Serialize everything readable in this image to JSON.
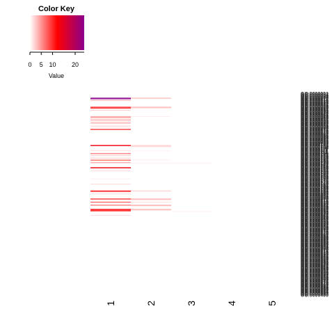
{
  "chart_data": {
    "type": "heatmap",
    "title": "",
    "color_key": {
      "title": "Color Key",
      "xlabel": "Value",
      "ticks": [
        0,
        5,
        10,
        20
      ],
      "range": [
        0,
        24
      ],
      "stops": [
        {
          "value": 0,
          "color": "#ffffff"
        },
        {
          "value": 12,
          "color": "#ff0000"
        },
        {
          "value": 24,
          "color": "#8b008b"
        }
      ]
    },
    "columns": [
      "1",
      "2",
      "3",
      "4",
      "5"
    ],
    "rows": [
      "GO:0000001",
      "GO:0000002",
      "GO:0000003",
      "GO:0000004",
      "GO:0000005",
      "GO:0000006",
      "GO:0000007",
      "GO:0000008",
      "GO:0000009",
      "GO:0000010",
      "GO:0000011",
      "GO:0000012",
      "GO:0000013",
      "GO:0000014",
      "GO:0000015",
      "GO:0000016",
      "GO:0000017",
      "GO:0000018",
      "GO:0000019",
      "GO:0000020",
      "GO:0000021",
      "GO:0000022",
      "GO:0000023",
      "GO:0000024",
      "GO:0000025",
      "GO:0000026",
      "GO:0000027",
      "GO:0000028",
      "GO:0000029",
      "GO:0000030",
      "GO:0000031",
      "GO:0000032",
      "GO:0000033",
      "GO:0000034",
      "GO:0000035",
      "GO:0000036",
      "GO:0000037",
      "GO:0000038",
      "GO:0000039",
      "GO:0000040",
      "GO:0000041",
      "GO:0000042",
      "GO:0000043",
      "GO:0000044",
      "GO:0000045",
      "GO:0000046",
      "GO:0000047",
      "GO:0000048",
      "GO:0000049",
      "GO:0000050",
      "GO:0000051",
      "GO:0000052",
      "GO:0000053",
      "GO:0000054",
      "GO:0000055",
      "GO:0000056",
      "GO:0000057",
      "GO:0000058",
      "GO:0000059",
      "GO:0000060",
      "GO:0000061",
      "GO:0000062",
      "GO:0000063",
      "GO:0000064",
      "GO:0000065",
      "GO:0000066",
      "GO:0000067",
      "GO:0000068",
      "GO:0000069",
      "GO:0000070",
      "GO:0000071",
      "GO:0000072",
      "GO:0000073",
      "GO:0000074",
      "GO:0000075",
      "GO:0000076",
      "GO:0000077",
      "GO:0000078",
      "GO:0000079",
      "GO:0000080",
      "GO:0000081",
      "GO:0000082",
      "GO:0000083",
      "GO:0000084",
      "GO:0000085",
      "GO:0000086",
      "GO:0000087",
      "GO:0000088",
      "GO:0000089",
      "GO:0000090",
      "GO:0000091",
      "GO:0000092",
      "GO:0000093",
      "GO:0000094",
      "GO:0000095",
      "GO:0000096",
      "GO:0000097",
      "GO:0000098",
      "GO:0000099",
      "GO:0000100",
      "GO:0000101",
      "GO:0000102",
      "GO:0000103",
      "GO:0000104",
      "GO:0000105",
      "GO:0000106",
      "GO:0000107",
      "GO:0000108",
      "GO:0000109",
      "GO:0000110",
      "GO:0000111",
      "GO:0000112",
      "GO:0000113",
      "GO:0000114",
      "GO:0000115",
      "GO:0000116",
      "GO:0000117",
      "GO:0000118",
      "GO:0000119",
      "GO:0000120",
      "GO:0000121",
      "GO:0000122",
      "GO:0000123",
      "GO:0000124",
      "GO:0000125",
      "GO:0000126",
      "GO:0000127",
      "GO:0000128",
      "GO:0000129",
      "GO:0000130",
      "GO:0000131",
      "GO:0000132",
      "GO:0000133",
      "GO:0000134",
      "GO:0000135",
      "GO:0000136",
      "GO:0000137",
      "GO:0000138",
      "GO:0000139",
      "GO:0000140",
      "GO:0000141",
      "GO:0000142",
      "GO:0000143",
      "GO:0000144",
      "GO:0000145",
      "GO:0000146",
      "GO:0000147",
      "GO:0000148",
      "GO:0000149",
      "GO:0000150",
      "GO:0000151",
      "GO:0000152",
      "GO:0000153",
      "GO:0000154",
      "GO:0000155",
      "GO:0000156",
      "GO:0000157",
      "GO:0000158",
      "GO:0000159",
      "GO:0000160",
      "GO:0000161",
      "GO:0000162",
      "GO:0000163",
      "GO:0000164",
      "GO:0000165",
      "GO:0000166",
      "GO:0000167",
      "GO:0000168",
      "GO:0000169",
      "GO:0000170",
      "GO:0000171",
      "GO:0000172",
      "GO:0000173",
      "GO:0000174",
      "GO:0000175",
      "GO:0000176",
      "GO:0000177",
      "GO:0000178",
      "GO:0000179",
      "GO:0000180",
      "GO:0000181",
      "GO:0000182",
      "GO:0000183",
      "GO:0000184",
      "GO:0000185",
      "GO:0000186",
      "GO:0000187",
      "GO:0000188",
      "GO:0000189",
      "GO:0000190",
      "GO:0000191",
      "GO:0000192",
      "GO:0000193",
      "GO:0000194",
      "GO:0000195",
      "GO:0000196",
      "GO:0000197",
      "GO:0000198",
      "GO:0000199",
      "GO:0000200",
      "GO:0000201",
      "GO:0000202",
      "GO:0000203",
      "GO:0000204",
      "GO:0000205",
      "GO:0000206",
      "GO:0000207",
      "GO:0000208",
      "GO:0000209",
      "GO:0000210",
      "GO:0000211",
      "GO:0000212",
      "GO:0000213",
      "GO:0000214",
      "GO:0000215",
      "GO:0000216",
      "GO:0000217",
      "GO:0000218",
      "GO:0000219",
      "GO:0000220",
      "GO:0000221",
      "GO:0000222",
      "GO:0000223",
      "GO:0000224",
      "GO:0000225",
      "GO:0000226",
      "GO:0000227",
      "GO:0000228",
      "GO:0000229",
      "GO:0000230",
      "GO:0000231",
      "GO:0000232",
      "GO:0000233",
      "GO:0000234",
      "GO:0000235",
      "GO:0000236",
      "GO:0000237",
      "GO:0000238",
      "GO:0000239",
      "GO:0000240",
      "GO:0000241",
      "GO:0000242",
      "GO:0000243",
      "GO:0000244",
      "GO:0000245",
      "GO:0000246",
      "GO:0000247",
      "GO:0000248",
      "GO:0000249",
      "GO:0000250",
      "GO:0000251",
      "GO:0000252",
      "GO:0000253",
      "GO:0000254",
      "GO:0000255",
      "GO:0000256",
      "GO:0000257",
      "GO:0000258",
      "GO:0000259",
      "GO:0000260",
      "GO:0000261",
      "GO:0000262",
      "GO:0000263",
      "GO:0000264",
      "GO:0000265",
      "GO:0000266",
      "GO:0000267",
      "GO:0000268",
      "GO:0000269",
      "GO:0000270",
      "GO:0000271",
      "GO:0000272",
      "GO:0000273",
      "GO:0000274",
      "GO:0000275",
      "GO:0000276",
      "GO:0000277",
      "GO:0000278",
      "GO:0000279",
      "GO:0000280",
      "GO:0000281",
      "GO:0000282",
      "GO:0000283",
      "GO:0000284",
      "GO:0000285",
      "GO:0000286",
      "GO:0000287",
      "GO:0000288",
      "GO:0000289",
      "GO:0000290",
      "GO:0000291",
      "GO:0000292",
      "GO:0000293",
      "GO:0000294",
      "GO:0000295",
      "GO:0000296",
      "GO:0000297",
      "GO:0000298",
      "GO:0000299",
      "GO:0000300",
      "GO:0000301",
      "GO:0000302",
      "GO:0000303",
      "GO:0000304",
      "GO:0000305",
      "GO:0000306",
      "GO:0000307",
      "GO:0000308",
      "GO:0000309",
      "GO:0000310",
      "GO:0000311",
      "GO:0000312",
      "GO:0000313",
      "GO:0000314",
      "GO:0000315",
      "GO:0000316",
      "GO:0000317",
      "GO:0000318",
      "GO:0000319",
      "GO:0000320",
      "GO:0000321",
      "GO:0000322",
      "GO:0000323",
      "GO:0000324",
      "GO:0000325",
      "GO:0000326",
      "GO:0000327",
      "GO:0000328",
      "GO:0000329",
      "GO:0000330",
      "GO:0000331",
      "GO:0000332",
      "GO:0000333",
      "GO:0000334",
      "GO:0000335",
      "GO:0000336",
      "GO:0000337",
      "GO:0000338",
      "GO:0000339",
      "GO:0000340",
      "GO:0000341",
      "GO:0000342",
      "GO:0000343",
      "GO:0000344",
      "GO:0000345",
      "GO:0000346",
      "GO:0000347",
      "GO:0000348",
      "GO:0000349",
      "GO:0000350",
      "GO:0000351",
      "GO:0000352",
      "GO:0000353",
      "GO:0000354",
      "GO:0000355",
      "GO:0000356",
      "GO:0000357",
      "GO:0000358",
      "GO:0000359",
      "GO:0000360",
      "GO:0000361",
      "GO:0000362",
      "GO:0000363",
      "GO:0000364",
      "GO:0000365",
      "GO:0000366",
      "GO:0000367",
      "GO:0000368",
      "GO:0000369",
      "GO:0000370",
      "GO:0000371",
      "GO:0000372",
      "GO:0000373",
      "GO:0000374",
      "GO:0000375",
      "GO:0000376",
      "GO:0000377",
      "GO:0000378",
      "GO:0000379",
      "GO:0000380",
      "GO:0000381",
      "GO:0000382",
      "GO:0000383",
      "GO:0000384",
      "GO:0000385",
      "GO:0000386",
      "GO:0000387",
      "GO:0000388",
      "GO:0000389",
      "GO:0000390",
      "GO:0000391",
      "GO:0000392",
      "GO:0000393",
      "GO:0000394",
      "GO:0000395",
      "GO:0000396",
      "GO:0000397",
      "GO:0000398",
      "GO:0000399",
      "GO:0000400"
    ],
    "values_col1_nonzero": [
      {
        "row": 5,
        "value": 24
      },
      {
        "row": 6,
        "value": 24
      },
      {
        "row": 7,
        "value": 24
      },
      {
        "row": 10,
        "value": 5
      },
      {
        "row": 24,
        "value": 9
      },
      {
        "row": 25,
        "value": 9
      },
      {
        "row": 26,
        "value": 9
      },
      {
        "row": 27,
        "value": 9
      },
      {
        "row": 31,
        "value": 3
      },
      {
        "row": 44,
        "value": 4
      },
      {
        "row": 45,
        "value": 4
      },
      {
        "row": 46,
        "value": 4
      },
      {
        "row": 47,
        "value": 4
      },
      {
        "row": 51,
        "value": 4
      },
      {
        "row": 52,
        "value": 4
      },
      {
        "row": 56,
        "value": 3
      },
      {
        "row": 58,
        "value": 3
      },
      {
        "row": 59,
        "value": 3
      },
      {
        "row": 64,
        "value": 2
      },
      {
        "row": 66,
        "value": 2
      },
      {
        "row": 71,
        "value": 9
      },
      {
        "row": 72,
        "value": 9
      },
      {
        "row": 105,
        "value": 13
      },
      {
        "row": 106,
        "value": 13
      },
      {
        "row": 116,
        "value": 2
      },
      {
        "row": 122,
        "value": 6
      },
      {
        "row": 123,
        "value": 6
      },
      {
        "row": 127,
        "value": 3
      },
      {
        "row": 132,
        "value": 3
      },
      {
        "row": 136,
        "value": 7
      },
      {
        "row": 137,
        "value": 7
      },
      {
        "row": 141,
        "value": 4
      },
      {
        "row": 142,
        "value": 4
      },
      {
        "row": 152,
        "value": 13
      },
      {
        "row": 153,
        "value": 13
      },
      {
        "row": 159,
        "value": 2
      },
      {
        "row": 176,
        "value": 1
      },
      {
        "row": 187,
        "value": 2
      },
      {
        "row": 201,
        "value": 9
      },
      {
        "row": 202,
        "value": 9
      },
      {
        "row": 203,
        "value": 9
      },
      {
        "row": 208,
        "value": 2
      },
      {
        "row": 218,
        "value": 9
      },
      {
        "row": 219,
        "value": 9
      },
      {
        "row": 225,
        "value": 11
      },
      {
        "row": 231,
        "value": 6
      },
      {
        "row": 232,
        "value": 6
      },
      {
        "row": 240,
        "value": 10
      },
      {
        "row": 241,
        "value": 10
      },
      {
        "row": 242,
        "value": 10
      },
      {
        "row": 243,
        "value": 10
      },
      {
        "row": 244,
        "value": 10
      },
      {
        "row": 253,
        "value": 2
      }
    ],
    "values_col2_nonzero": [
      {
        "row": 5,
        "value": 3
      },
      {
        "row": 6,
        "value": 3
      },
      {
        "row": 24,
        "value": 3
      },
      {
        "row": 25,
        "value": 3
      },
      {
        "row": 26,
        "value": 3
      },
      {
        "row": 44,
        "value": 1
      },
      {
        "row": 105,
        "value": 2
      },
      {
        "row": 106,
        "value": 2
      },
      {
        "row": 107,
        "value": 2
      },
      {
        "row": 108,
        "value": 2
      },
      {
        "row": 117,
        "value": 1
      },
      {
        "row": 136,
        "value": 1
      },
      {
        "row": 143,
        "value": 1
      },
      {
        "row": 201,
        "value": 2
      },
      {
        "row": 202,
        "value": 2
      },
      {
        "row": 218,
        "value": 3
      },
      {
        "row": 219,
        "value": 3
      },
      {
        "row": 220,
        "value": 3
      },
      {
        "row": 225,
        "value": 2
      },
      {
        "row": 231,
        "value": 3
      },
      {
        "row": 232,
        "value": 3
      },
      {
        "row": 233,
        "value": 3
      },
      {
        "row": 240,
        "value": 3
      },
      {
        "row": 241,
        "value": 3
      },
      {
        "row": 242,
        "value": 3
      }
    ],
    "values_col3_nonzero": [
      {
        "row": 143,
        "value": 1
      },
      {
        "row": 245,
        "value": 1
      }
    ]
  }
}
